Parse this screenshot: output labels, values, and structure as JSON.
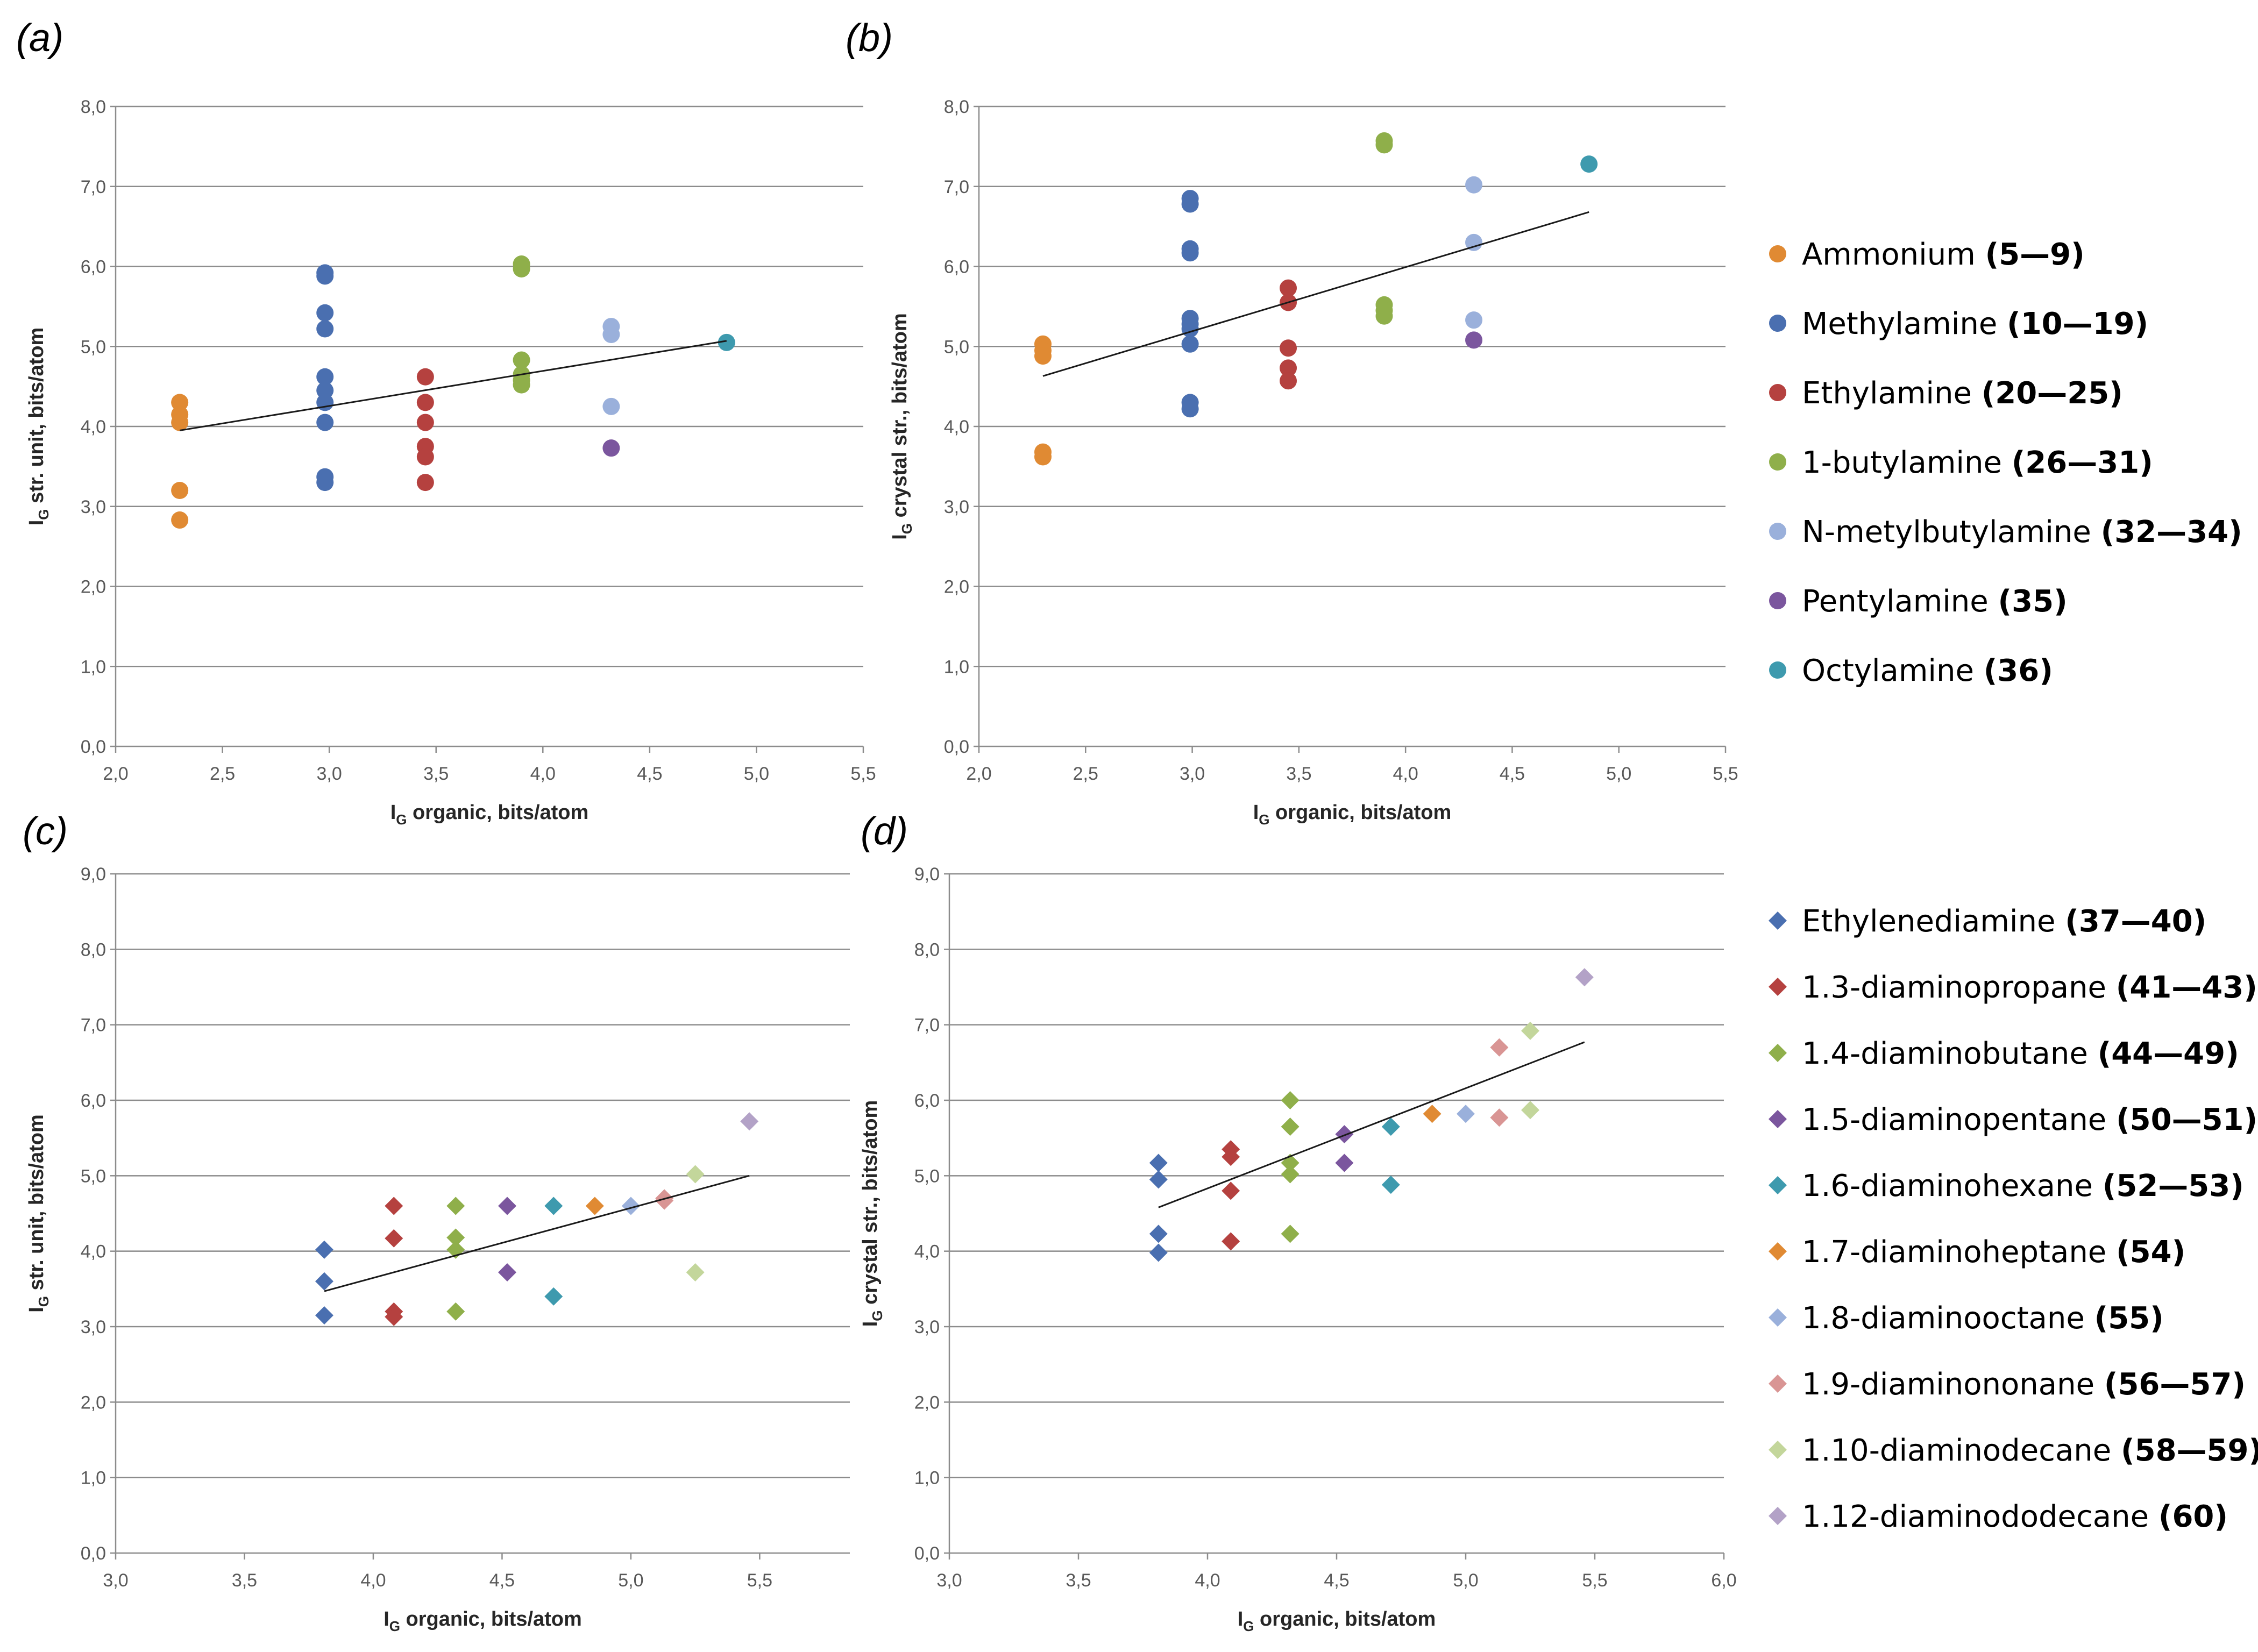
{
  "chart_data": [
    {
      "panel": "(a)",
      "type": "scatter",
      "marker": "circle",
      "xlabel_main": "I",
      "xlabel_sub": "G",
      "xlabel_rest": " organic, bits/atom",
      "ylabel_main": "I",
      "ylabel_sub": "G",
      "ylabel_rest": " str. unit, bits/atom",
      "xlim": [
        2.0,
        5.5
      ],
      "ylim": [
        0.0,
        8.0
      ],
      "xticks": [
        "2,0",
        "2,5",
        "3,0",
        "3,5",
        "4,0",
        "4,5",
        "5,0",
        "5,5"
      ],
      "yticks": [
        "0,0",
        "1,0",
        "2,0",
        "3,0",
        "4,0",
        "5,0",
        "6,0",
        "7,0",
        "8,0"
      ],
      "trendline": [
        [
          2.3,
          3.95
        ],
        [
          4.86,
          5.07
        ]
      ],
      "series": [
        {
          "name": "Ammonium",
          "color": "#E08A33",
          "points": [
            [
              2.3,
              4.3
            ],
            [
              2.3,
              4.15
            ],
            [
              2.3,
              4.05
            ],
            [
              2.3,
              3.2
            ],
            [
              2.3,
              2.83
            ]
          ]
        },
        {
          "name": "Methylamine",
          "color": "#4A6FB0",
          "points": [
            [
              2.98,
              5.92
            ],
            [
              2.98,
              5.88
            ],
            [
              2.98,
              5.42
            ],
            [
              2.98,
              5.22
            ],
            [
              2.98,
              4.62
            ],
            [
              2.98,
              4.45
            ],
            [
              2.98,
              4.3
            ],
            [
              2.98,
              4.05
            ],
            [
              2.98,
              3.37
            ],
            [
              2.98,
              3.3
            ]
          ]
        },
        {
          "name": "Ethylamine",
          "color": "#B5413F",
          "points": [
            [
              3.45,
              4.62
            ],
            [
              3.45,
              4.3
            ],
            [
              3.45,
              4.05
            ],
            [
              3.45,
              3.75
            ],
            [
              3.45,
              3.62
            ],
            [
              3.45,
              3.3
            ]
          ]
        },
        {
          "name": "1-butylamine",
          "color": "#8FAF4A",
          "points": [
            [
              3.9,
              6.03
            ],
            [
              3.9,
              5.97
            ],
            [
              3.9,
              4.83
            ],
            [
              3.9,
              4.65
            ],
            [
              3.9,
              4.58
            ],
            [
              3.9,
              4.52
            ]
          ]
        },
        {
          "name": "N-metylbutylamine",
          "color": "#9AB0DB",
          "points": [
            [
              4.32,
              5.25
            ],
            [
              4.32,
              5.15
            ],
            [
              4.32,
              4.25
            ]
          ]
        },
        {
          "name": "Pentylamine",
          "color": "#7B569E",
          "points": [
            [
              4.32,
              3.73
            ]
          ]
        },
        {
          "name": "Octylamine",
          "color": "#3E9AAE",
          "points": [
            [
              4.86,
              5.05
            ]
          ]
        }
      ]
    },
    {
      "panel": "(b)",
      "type": "scatter",
      "marker": "circle",
      "xlabel_main": "I",
      "xlabel_sub": "G",
      "xlabel_rest": " organic, bits/atom",
      "ylabel_main": "I",
      "ylabel_sub": "G",
      "ylabel_rest": " crystal str., bits/atom",
      "xlim": [
        2.0,
        5.5
      ],
      "ylim": [
        0.0,
        8.0
      ],
      "xticks": [
        "2,0",
        "2,5",
        "3,0",
        "3,5",
        "4,0",
        "4,5",
        "5,0",
        "5,5"
      ],
      "yticks": [
        "0,0",
        "1,0",
        "2,0",
        "3,0",
        "4,0",
        "5,0",
        "6,0",
        "7,0",
        "8,0"
      ],
      "trendline": [
        [
          2.3,
          4.63
        ],
        [
          4.86,
          6.68
        ]
      ],
      "series": [
        {
          "name": "Ammonium",
          "color": "#E08A33",
          "points": [
            [
              2.3,
              5.03
            ],
            [
              2.3,
              4.95
            ],
            [
              2.3,
              4.88
            ],
            [
              2.3,
              3.68
            ],
            [
              2.3,
              3.62
            ]
          ]
        },
        {
          "name": "Methylamine",
          "color": "#4A6FB0",
          "points": [
            [
              2.99,
              6.85
            ],
            [
              2.99,
              6.78
            ],
            [
              2.99,
              6.22
            ],
            [
              2.99,
              6.17
            ],
            [
              2.99,
              5.35
            ],
            [
              2.99,
              5.28
            ],
            [
              2.99,
              5.22
            ],
            [
              2.99,
              5.03
            ],
            [
              2.99,
              4.3
            ],
            [
              2.99,
              4.22
            ]
          ]
        },
        {
          "name": "Ethylamine",
          "color": "#B5413F",
          "points": [
            [
              3.45,
              5.73
            ],
            [
              3.45,
              5.55
            ],
            [
              3.45,
              4.98
            ],
            [
              3.45,
              4.73
            ],
            [
              3.45,
              4.57
            ]
          ]
        },
        {
          "name": "1-butylamine",
          "color": "#8FAF4A",
          "points": [
            [
              3.9,
              7.57
            ],
            [
              3.9,
              7.52
            ],
            [
              3.9,
              5.52
            ],
            [
              3.9,
              5.45
            ],
            [
              3.9,
              5.38
            ]
          ]
        },
        {
          "name": "N-metylbutylamine",
          "color": "#9AB0DB",
          "points": [
            [
              4.32,
              7.02
            ],
            [
              4.32,
              6.3
            ],
            [
              4.32,
              5.33
            ]
          ]
        },
        {
          "name": "Pentylamine",
          "color": "#7B569E",
          "points": [
            [
              4.32,
              5.08
            ]
          ]
        },
        {
          "name": "Octylamine",
          "color": "#3E9AAE",
          "points": [
            [
              4.86,
              7.28
            ]
          ]
        }
      ]
    },
    {
      "panel": "(c)",
      "type": "scatter",
      "marker": "diamond",
      "xlabel_main": "I",
      "xlabel_sub": "G",
      "xlabel_rest": " organic, bits/atom",
      "ylabel_main": "I",
      "ylabel_sub": "G",
      "ylabel_rest": " str. unit, bits/atom",
      "xlim": [
        3.0,
        5.85
      ],
      "ylim": [
        0.0,
        9.0
      ],
      "xticks": [
        "3,0",
        "3,5",
        "4,0",
        "4,5",
        "5,0",
        "5,5"
      ],
      "yticks": [
        "0,0",
        "1,0",
        "2,0",
        "3,0",
        "4,0",
        "5,0",
        "6,0",
        "7,0",
        "8,0",
        "9,0"
      ],
      "trendline": [
        [
          3.81,
          3.47
        ],
        [
          5.46,
          5.0
        ]
      ],
      "series": [
        {
          "name": "Ethylenediamine",
          "color": "#4A6FB0",
          "points": [
            [
              3.81,
              4.02
            ],
            [
              3.81,
              3.6
            ],
            [
              3.81,
              3.15
            ]
          ]
        },
        {
          "name": "1.3-diaminopropane",
          "color": "#B5413F",
          "points": [
            [
              4.08,
              4.6
            ],
            [
              4.08,
              4.17
            ],
            [
              4.08,
              3.2
            ],
            [
              4.08,
              3.13
            ]
          ]
        },
        {
          "name": "1.4-diaminobutane",
          "color": "#8FAF4A",
          "points": [
            [
              4.32,
              4.6
            ],
            [
              4.32,
              4.18
            ],
            [
              4.32,
              4.02
            ],
            [
              4.32,
              3.2
            ]
          ]
        },
        {
          "name": "1.5-diaminopentane",
          "color": "#7B569E",
          "points": [
            [
              4.52,
              4.6
            ],
            [
              4.52,
              3.72
            ]
          ]
        },
        {
          "name": "1.6-diaminohexane",
          "color": "#3E9AAE",
          "points": [
            [
              4.7,
              4.6
            ],
            [
              4.7,
              3.4
            ]
          ]
        },
        {
          "name": "1.7-diaminoheptane",
          "color": "#E08A33",
          "points": [
            [
              4.86,
              4.6
            ]
          ]
        },
        {
          "name": "1.8-diaminooctane",
          "color": "#9AB0DB",
          "points": [
            [
              5.0,
              4.6
            ]
          ]
        },
        {
          "name": "1.9-diaminononane",
          "color": "#D99594",
          "points": [
            [
              5.13,
              4.7
            ],
            [
              5.13,
              4.67
            ]
          ]
        },
        {
          "name": "1.10-diaminodecane",
          "color": "#C3D69B",
          "points": [
            [
              5.25,
              5.02
            ],
            [
              5.25,
              3.72
            ]
          ]
        },
        {
          "name": "1.12-diaminododecane",
          "color": "#B3A2C7",
          "points": [
            [
              5.46,
              5.72
            ]
          ]
        }
      ]
    },
    {
      "panel": "(d)",
      "type": "scatter",
      "marker": "diamond",
      "xlabel_main": "I",
      "xlabel_sub": "G",
      "xlabel_rest": " organic, bits/atom",
      "ylabel_main": "I",
      "ylabel_sub": "G",
      "ylabel_rest": " crystal str., bits/atom",
      "xlim": [
        3.0,
        6.0
      ],
      "ylim": [
        0.0,
        9.0
      ],
      "xticks": [
        "3,0",
        "3,5",
        "4,0",
        "4,5",
        "5,0",
        "5,5",
        "6,0"
      ],
      "yticks": [
        "0,0",
        "1,0",
        "2,0",
        "3,0",
        "4,0",
        "5,0",
        "6,0",
        "7,0",
        "8,0",
        "9,0"
      ],
      "trendline": [
        [
          3.81,
          4.58
        ],
        [
          5.46,
          6.77
        ]
      ],
      "series": [
        {
          "name": "Ethylenediamine",
          "color": "#4A6FB0",
          "points": [
            [
              3.81,
              5.17
            ],
            [
              3.81,
              4.95
            ],
            [
              3.81,
              4.23
            ],
            [
              3.81,
              3.98
            ]
          ]
        },
        {
          "name": "1.3-diaminopropane",
          "color": "#B5413F",
          "points": [
            [
              4.09,
              5.35
            ],
            [
              4.09,
              5.25
            ],
            [
              4.09,
              4.8
            ],
            [
              4.09,
              4.13
            ]
          ]
        },
        {
          "name": "1.4-diaminobutane",
          "color": "#8FAF4A",
          "points": [
            [
              4.32,
              6.0
            ],
            [
              4.32,
              5.65
            ],
            [
              4.32,
              5.17
            ],
            [
              4.32,
              5.02
            ],
            [
              4.32,
              4.23
            ]
          ]
        },
        {
          "name": "1.5-diaminopentane",
          "color": "#7B569E",
          "points": [
            [
              4.53,
              5.55
            ],
            [
              4.53,
              5.17
            ]
          ]
        },
        {
          "name": "1.6-diaminohexane",
          "color": "#3E9AAE",
          "points": [
            [
              4.71,
              5.65
            ],
            [
              4.71,
              4.88
            ]
          ]
        },
        {
          "name": "1.7-diaminoheptane",
          "color": "#E08A33",
          "points": [
            [
              4.87,
              5.82
            ]
          ]
        },
        {
          "name": "1.8-diaminooctane",
          "color": "#9AB0DB",
          "points": [
            [
              5.0,
              5.82
            ]
          ]
        },
        {
          "name": "1.9-diaminononane",
          "color": "#D99594",
          "points": [
            [
              5.13,
              6.7
            ],
            [
              5.13,
              5.77
            ]
          ]
        },
        {
          "name": "1.10-diaminodecane",
          "color": "#C3D69B",
          "points": [
            [
              5.25,
              6.92
            ],
            [
              5.25,
              5.87
            ]
          ]
        },
        {
          "name": "1.12-diaminododecane",
          "color": "#B3A2C7",
          "points": [
            [
              5.46,
              7.63
            ]
          ]
        }
      ]
    }
  ],
  "legends": [
    {
      "marker": "circle",
      "items": [
        {
          "label": "Ammonium ",
          "range": "(5—9)",
          "color": "#E08A33"
        },
        {
          "label": "Methylamine ",
          "range": "(10—19)",
          "color": "#4A6FB0"
        },
        {
          "label": "Ethylamine ",
          "range": "(20—25)",
          "color": "#B5413F"
        },
        {
          "label": "1-butylamine ",
          "range": "(26—31)",
          "color": "#8FAF4A"
        },
        {
          "label": "N-metylbutylamine ",
          "range": "(32—34)",
          "color": "#9AB0DB"
        },
        {
          "label": "Pentylamine ",
          "range": "(35)",
          "color": "#7B569E"
        },
        {
          "label": "Octylamine ",
          "range": "(36)",
          "color": "#3E9AAE"
        }
      ]
    },
    {
      "marker": "diamond",
      "items": [
        {
          "label": "Ethylenediamine ",
          "range": "(37—40)",
          "color": "#4A6FB0"
        },
        {
          "label": "1.3-diaminopropane ",
          "range": "(41—43)",
          "color": "#B5413F"
        },
        {
          "label": "1.4-diaminobutane ",
          "range": "(44—49)",
          "color": "#8FAF4A"
        },
        {
          "label": "1.5-diaminopentane ",
          "range": "(50—51)",
          "color": "#7B569E"
        },
        {
          "label": "1.6-diaminohexane ",
          "range": "(52—53)",
          "color": "#3E9AAE"
        },
        {
          "label": "1.7-diaminoheptane ",
          "range": "(54)",
          "color": "#E08A33"
        },
        {
          "label": "1.8-diaminooctane ",
          "range": "(55)",
          "color": "#9AB0DB"
        },
        {
          "label": "1.9-diaminononane ",
          "range": "(56—57)",
          "color": "#D99594"
        },
        {
          "label": "1.10-diaminodecane ",
          "range": "(58—59)",
          "color": "#C3D69B"
        },
        {
          "label": "1.12-diaminododecane ",
          "range": "(60)",
          "color": "#B3A2C7"
        }
      ]
    }
  ]
}
